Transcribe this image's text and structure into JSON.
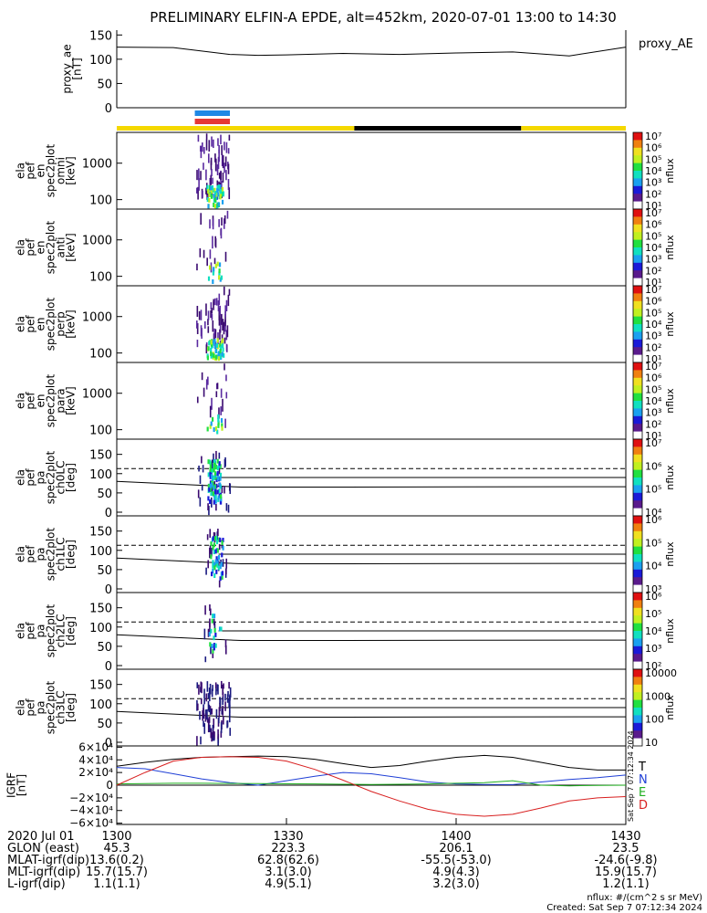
{
  "title": "PRELIMINARY ELFIN-A EPDE, alt=452km, 2020-07-01 13:00 to 14:30",
  "chart_data": [
    {
      "type": "line",
      "name": "proxy_ae",
      "ylabel": [
        "proxy_ae",
        "[nT]"
      ],
      "legend": "proxy_AE",
      "ylim": [
        0,
        160
      ],
      "yticks": [
        "150",
        "100",
        "50",
        "0"
      ],
      "ytick_values": [
        150,
        100,
        50,
        0
      ],
      "x_minutes": [
        0,
        10,
        20,
        25,
        30,
        40,
        50,
        60,
        70,
        80,
        90
      ],
      "values": [
        125,
        124,
        110,
        108,
        109,
        112,
        110,
        113,
        115,
        107,
        125
      ]
    },
    {
      "type": "heatmap",
      "name": "science_zone_bar",
      "segments": [
        {
          "from_min": 0,
          "to_min": 42,
          "color": "#f5d800"
        },
        {
          "from_min": 42,
          "to_min": 71.5,
          "color": "#000000"
        },
        {
          "from_min": 71.5,
          "to_min": 90,
          "color": "#f5d800"
        }
      ],
      "markers": [
        {
          "from_min": 13.8,
          "to_min": 20.0,
          "color": "#1e88e5"
        },
        {
          "from_min": 13.8,
          "to_min": 20.0,
          "color": "#e53935"
        }
      ]
    },
    {
      "type": "heatmap",
      "name": "ela_pef_en_spec2plot_omni",
      "ylabel": [
        "ela",
        "pef",
        "en",
        "spec2plot",
        "omni",
        "[keV]"
      ],
      "yscale": "log",
      "yticks": [
        "1000",
        "100"
      ],
      "ytick_values": [
        1000,
        100
      ],
      "ylim": [
        55,
        7000
      ],
      "colorbar": {
        "scale": "log",
        "range": [
          10,
          10000000
        ],
        "label": "nflux",
        "ticks": [
          "10⁷",
          "10⁶",
          "10⁵",
          "10⁴",
          "10³",
          "10²",
          "10¹"
        ]
      },
      "time_span_min": [
        14.0,
        19.8
      ]
    },
    {
      "type": "heatmap",
      "name": "ela_pef_en_spec2plot_anti",
      "ylabel": [
        "ela",
        "pef",
        "en",
        "spec2plot",
        "anti",
        "[keV]"
      ],
      "yscale": "log",
      "yticks": [
        "1000",
        "100"
      ],
      "ytick_values": [
        1000,
        100
      ],
      "ylim": [
        55,
        7000
      ],
      "colorbar": {
        "scale": "log",
        "range": [
          10,
          10000000
        ],
        "label": "nflux",
        "ticks": [
          "10⁷",
          "10⁶",
          "10⁵",
          "10⁴",
          "10³",
          "10²",
          "10¹"
        ]
      },
      "time_span_min": [
        14.0,
        19.8
      ]
    },
    {
      "type": "heatmap",
      "name": "ela_pef_en_spec2plot_perp",
      "ylabel": [
        "ela",
        "pef",
        "en",
        "spec2plot",
        "perp",
        "[keV]"
      ],
      "yscale": "log",
      "yticks": [
        "1000",
        "100"
      ],
      "ytick_values": [
        1000,
        100
      ],
      "ylim": [
        55,
        7000
      ],
      "colorbar": {
        "scale": "log",
        "range": [
          10,
          10000000
        ],
        "label": "nflux",
        "ticks": [
          "10⁷",
          "10⁶",
          "10⁵",
          "10⁴",
          "10³",
          "10²",
          "10¹"
        ]
      },
      "time_span_min": [
        14.0,
        19.8
      ]
    },
    {
      "type": "heatmap",
      "name": "ela_pef_en_spec2plot_para",
      "ylabel": [
        "ela",
        "pef",
        "en",
        "spec2plot",
        "para",
        "[keV]"
      ],
      "yscale": "log",
      "yticks": [
        "1000",
        "100"
      ],
      "ytick_values": [
        1000,
        100
      ],
      "ylim": [
        55,
        7000
      ],
      "colorbar": {
        "scale": "log",
        "range": [
          10,
          10000000
        ],
        "label": "nflux",
        "ticks": [
          "10⁷",
          "10⁶",
          "10⁵",
          "10⁴",
          "10³",
          "10²",
          "10¹"
        ]
      },
      "time_span_min": [
        14.0,
        19.8
      ]
    },
    {
      "type": "heatmap",
      "name": "ela_pef_pa_spec2plot_ch0LC",
      "ylabel": [
        "ela",
        "pef",
        "pa",
        "spec2plot",
        "ch0LC",
        "[deg]"
      ],
      "yticks": [
        "150",
        "100",
        "50",
        "0"
      ],
      "ytick_values": [
        150,
        100,
        50,
        0
      ],
      "ylim": [
        0,
        180
      ],
      "colorbar": {
        "scale": "log",
        "label": "nflux",
        "ticks": [
          "10⁷",
          "10⁶",
          "10⁵",
          "10⁴"
        ]
      },
      "time_span_min": [
        14.3,
        20.0
      ],
      "lines_dashed": [
        113,
        113
      ],
      "lines_solid_a": [
        80,
        90
      ],
      "lines_solid_b": [
        90,
        66
      ]
    },
    {
      "type": "heatmap",
      "name": "ela_pef_pa_spec2plot_ch1LC",
      "ylabel": [
        "ela",
        "pef",
        "pa",
        "spec2plot",
        "ch1LC",
        "[deg]"
      ],
      "yticks": [
        "150",
        "100",
        "50",
        "0"
      ],
      "ytick_values": [
        150,
        100,
        50,
        0
      ],
      "ylim": [
        0,
        180
      ],
      "colorbar": {
        "scale": "log",
        "label": "nflux",
        "ticks": [
          "10⁶",
          "10⁵",
          "10⁴",
          "10³"
        ]
      },
      "time_span_min": [
        15.6,
        19.4
      ],
      "lines_dashed": [
        113,
        113
      ],
      "lines_solid_a": [
        80,
        90
      ],
      "lines_solid_b": [
        90,
        66
      ]
    },
    {
      "type": "heatmap",
      "name": "ela_pef_pa_spec2plot_ch2LC",
      "ylabel": [
        "ela",
        "pef",
        "pa",
        "spec2plot",
        "ch2LC",
        "[deg]"
      ],
      "yticks": [
        "150",
        "100",
        "50",
        "0"
      ],
      "ytick_values": [
        150,
        100,
        50,
        0
      ],
      "ylim": [
        0,
        180
      ],
      "colorbar": {
        "scale": "log",
        "label": "nflux",
        "ticks": [
          "10⁶",
          "10⁵",
          "10⁴",
          "10³",
          "10²"
        ]
      },
      "time_span_min": [
        15.4,
        19.2
      ],
      "lines_dashed": [
        113,
        113
      ],
      "lines_solid_a": [
        80,
        90
      ],
      "lines_solid_b": [
        90,
        66
      ]
    },
    {
      "type": "heatmap",
      "name": "ela_pef_pa_spec2plot_ch3LC",
      "ylabel": [
        "ela",
        "pef",
        "pa",
        "spec2plot",
        "ch3LC",
        "[deg]"
      ],
      "yticks": [
        "150",
        "100",
        "50",
        "0"
      ],
      "ytick_values": [
        150,
        100,
        50,
        0
      ],
      "ylim": [
        0,
        180
      ],
      "colorbar": {
        "scale": "log",
        "label": "nflux",
        "ticks": [
          "10000",
          "1000",
          "100",
          "10"
        ]
      },
      "time_span_min": [
        14.0,
        20.0
      ],
      "lines_dashed": [
        113,
        113
      ],
      "lines_solid_a": [
        80,
        90
      ],
      "lines_solid_b": [
        90,
        66
      ]
    },
    {
      "type": "line",
      "name": "IGRF",
      "ylabel": [
        "IGRF",
        "[nT]"
      ],
      "ylim": [
        -62000,
        62000
      ],
      "yticks": [
        "6×10⁴",
        "4×10⁴",
        "2×10⁴",
        "0",
        "−2×10⁴",
        "−4×10⁴",
        "−6×10⁴"
      ],
      "ytick_values": [
        60000,
        40000,
        20000,
        0,
        -20000,
        -40000,
        -60000
      ],
      "legend": [
        "T",
        "N",
        "E",
        "D"
      ],
      "x_minutes": [
        0,
        5,
        10,
        15,
        20,
        25,
        30,
        35,
        40,
        45,
        50,
        55,
        60,
        65,
        70,
        75,
        80,
        85,
        90
      ],
      "series": [
        {
          "name": "T",
          "color": "#000000",
          "values": [
            30000,
            36000,
            41000,
            44000,
            45000,
            46000,
            45000,
            41000,
            34000,
            28000,
            31000,
            38000,
            44000,
            47000,
            44000,
            36000,
            28000,
            24000,
            24000
          ]
        },
        {
          "name": "N",
          "color": "#1f3fd6",
          "values": [
            28000,
            26000,
            18000,
            10000,
            4000,
            0,
            7000,
            14000,
            20000,
            18000,
            12000,
            5000,
            2000,
            1000,
            800,
            5000,
            9000,
            12000,
            16000
          ]
        },
        {
          "name": "E",
          "color": "#1fae1f",
          "values": [
            2000,
            2500,
            3000,
            3000,
            2800,
            2500,
            2200,
            2000,
            1500,
            1200,
            1500,
            2000,
            3000,
            4000,
            7000,
            0,
            -1000,
            -500,
            0
          ]
        },
        {
          "name": "D",
          "color": "#d81f1f",
          "values": [
            0,
            20000,
            38000,
            44000,
            45000,
            44000,
            38000,
            25000,
            8000,
            -10000,
            -25000,
            -38000,
            -46000,
            -49000,
            -46000,
            -36000,
            -25000,
            -20000,
            -18000
          ]
        }
      ]
    }
  ],
  "xaxis": {
    "ticks": [
      "1300",
      "1330",
      "1400",
      "1430"
    ],
    "tick_minutes": [
      0,
      30,
      60,
      90
    ],
    "rows": [
      {
        "label": "2020 Jul 01",
        "values": [
          "1300",
          "1330",
          "1400",
          "1430"
        ]
      },
      {
        "label": "GLON (east)",
        "values": [
          "45.3",
          "223.3",
          "206.1",
          "23.5"
        ]
      },
      {
        "label": "MLAT-igrf(dip)",
        "values": [
          "13.6(0.2)",
          "62.8(62.6)",
          "-55.5(-53.0)",
          "-24.6(-9.8)"
        ]
      },
      {
        "label": "MLT-igrf(dip)",
        "values": [
          "15.7(15.7)",
          "3.1(3.0)",
          "4.9(4.3)",
          "15.9(15.7)"
        ]
      },
      {
        "label": "L-igrf(dip)",
        "values": [
          "1.1(1.1)",
          "4.9(5.1)",
          "3.2(3.0)",
          "1.2(1.1)"
        ]
      }
    ]
  },
  "footer": {
    "units": "nflux: #/(cm^2 s sr MeV)",
    "created": "Created: Sat Sep  7 07:12:34 2024",
    "side_stamp": "Sat Sep  7 07:12:34 2024"
  }
}
